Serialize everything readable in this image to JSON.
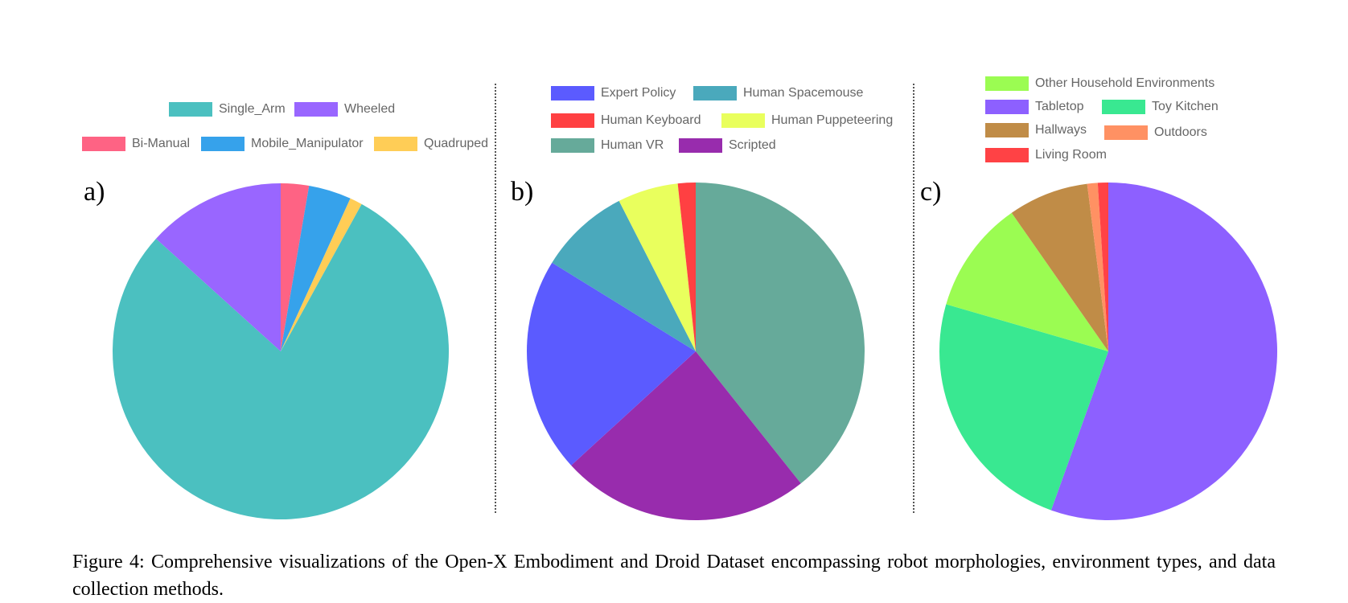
{
  "chart_data": [
    {
      "type": "pie",
      "label": "a)",
      "start_angle_deg": 0,
      "slices": [
        {
          "name": "Bi-Manual",
          "value": 2.7,
          "color": "#fe6384"
        },
        {
          "name": "Mobile_Manipulator",
          "value": 4.1,
          "color": "#36a2eb"
        },
        {
          "name": "Quadruped",
          "value": 1.2,
          "color": "#ffcd56"
        },
        {
          "name": "Single_Arm",
          "value": 78.7,
          "color": "#4bc0c0"
        },
        {
          "name": "Wheeled",
          "value": 13.3,
          "color": "#9966ff"
        }
      ],
      "legend": {
        "position": "top",
        "rows": [
          [
            "Single_Arm",
            "Wheeled"
          ],
          [
            "Bi-Manual",
            "Mobile_Manipulator",
            "Quadruped"
          ]
        ]
      }
    },
    {
      "type": "pie",
      "label": "b)",
      "start_angle_deg": 0,
      "slices": [
        {
          "name": "Human VR",
          "value": 39.3,
          "color": "#66aa9a"
        },
        {
          "name": "Scripted",
          "value": 23.9,
          "color": "#982cad"
        },
        {
          "name": "Expert Policy",
          "value": 20.6,
          "color": "#5b5bff"
        },
        {
          "name": "Human Spacemouse",
          "value": 8.7,
          "color": "#4aa9bc"
        },
        {
          "name": "Human Puppeteering",
          "value": 5.8,
          "color": "#e9ff5d"
        },
        {
          "name": "Human Keyboard",
          "value": 1.7,
          "color": "#ff4042"
        }
      ],
      "legend": {
        "position": "top",
        "rows": [
          [
            "Expert Policy",
            "Human Spacemouse"
          ],
          [
            "Human Keyboard",
            "Human Puppeteering"
          ],
          [
            "Human VR",
            "Scripted"
          ]
        ]
      }
    },
    {
      "type": "pie",
      "label": "c)",
      "start_angle_deg": 0,
      "slices": [
        {
          "name": "Tabletop",
          "value": 55.5,
          "color": "#8d60ff"
        },
        {
          "name": "Toy Kitchen",
          "value": 24.0,
          "color": "#39e891"
        },
        {
          "name": "Other Household Environments",
          "value": 10.8,
          "color": "#9bfc52"
        },
        {
          "name": "Hallways",
          "value": 7.7,
          "color": "#c08c47"
        },
        {
          "name": "Outdoors",
          "value": 1.0,
          "color": "#ff9163"
        },
        {
          "name": "Living Room",
          "value": 1.0,
          "color": "#ff4245"
        }
      ],
      "legend": {
        "position": "top",
        "rows": [
          [
            "Other Household Environments"
          ],
          [
            "Tabletop",
            "Toy Kitchen"
          ],
          [
            "Hallways",
            "Outdoors"
          ],
          [
            "Living Room"
          ]
        ]
      }
    }
  ],
  "caption": "Figure 4:  Comprehensive visualizations of the Open-X Embodiment and Droid Dataset encompassing robot morphologies, environment types, and data collection methods."
}
